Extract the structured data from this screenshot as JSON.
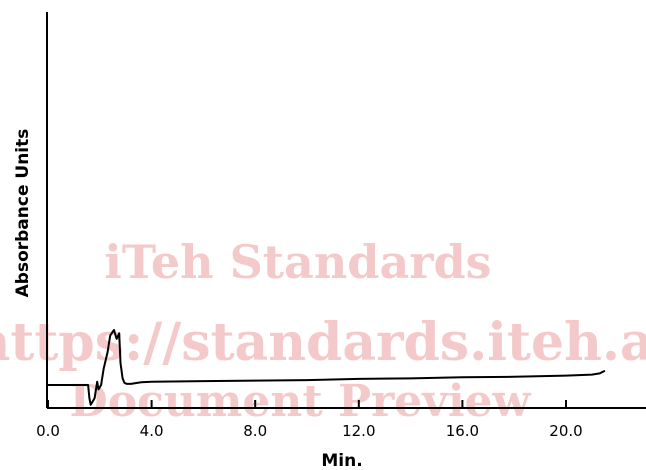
{
  "chart_data": {
    "type": "line",
    "xlabel": "Min.",
    "ylabel": "Absorbance Units",
    "xlim": [
      0,
      23.5
    ],
    "ylim": [
      -1,
      30
    ],
    "xticks": [
      "0.0",
      "4.0",
      "8.0",
      "12.0",
      "16.0",
      "20.0"
    ],
    "xtick_values": [
      0,
      4,
      8,
      12,
      16,
      20
    ],
    "series": [
      {
        "x": [
          0,
          1.55,
          1.6,
          1.65,
          1.8,
          1.9,
          1.95,
          2.05,
          2.15,
          2.3,
          2.4,
          2.55,
          2.65,
          2.75,
          2.8,
          2.88,
          2.95,
          3.05,
          3.2,
          3.6,
          4.0,
          6.0,
          8.0,
          10.0,
          12.0,
          14.0,
          16.0,
          18.0,
          20.0,
          21.0,
          21.3,
          21.5
        ],
        "y": [
          1.0,
          1.0,
          -0.2,
          -0.8,
          -0.2,
          1.3,
          0.6,
          1.0,
          2.5,
          4.0,
          5.5,
          6.0,
          5.2,
          5.7,
          3.0,
          1.6,
          1.2,
          1.1,
          1.1,
          1.25,
          1.3,
          1.35,
          1.4,
          1.45,
          1.55,
          1.6,
          1.7,
          1.75,
          1.85,
          1.95,
          2.05,
          2.3
        ]
      }
    ]
  },
  "watermark": {
    "line1": "iTeh Standards",
    "line2": "(https://standards.iteh.ai)",
    "line3": "Document Preview"
  }
}
